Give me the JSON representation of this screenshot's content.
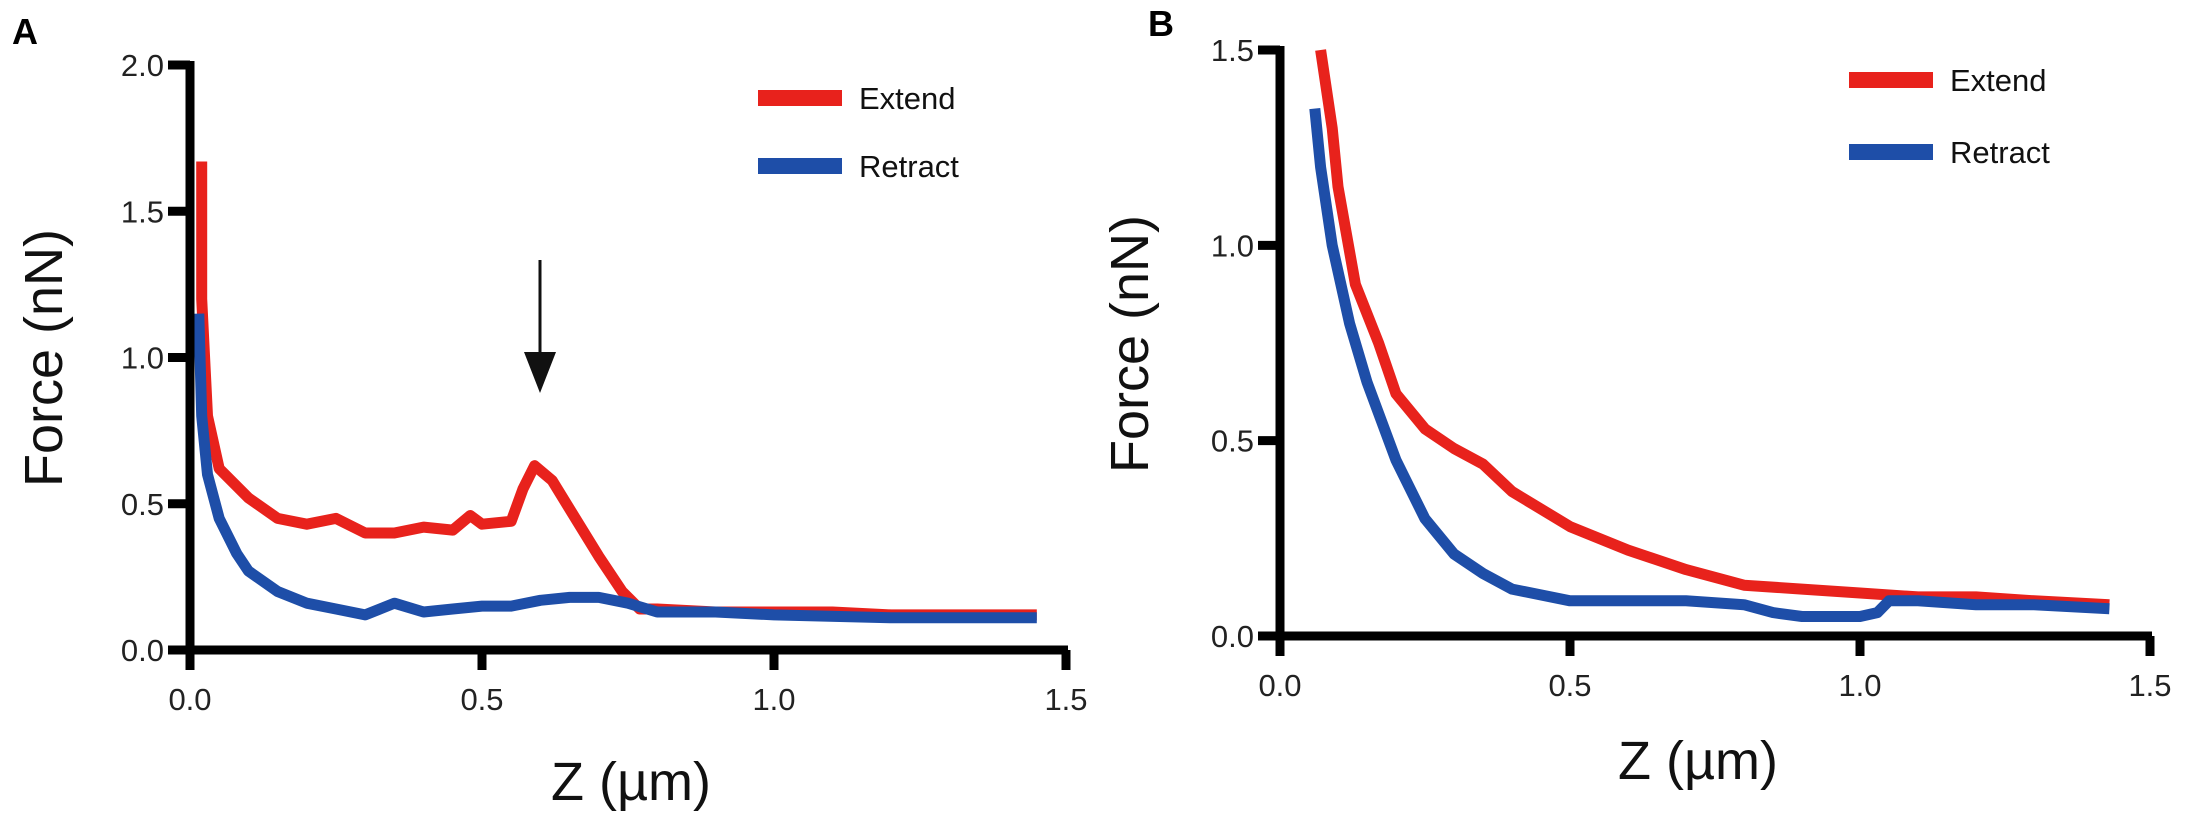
{
  "colors": {
    "extend": "#e8221c",
    "retract": "#1e4ea8",
    "axis": "#000000"
  },
  "chart_data": [
    {
      "panel_label": "A",
      "type": "line",
      "xlabel": "Z (µm)",
      "ylabel": "Force (nN)",
      "xlim": [
        0,
        1.5
      ],
      "ylim": [
        0,
        2.0
      ],
      "xticks": [
        "0.0",
        "0.5",
        "1.0",
        "1.5"
      ],
      "yticks": [
        "0.0",
        "0.5",
        "1.0",
        "1.5",
        "2.0"
      ],
      "grid": false,
      "legend_position": "top-right",
      "annotation": "arrow pointing down at the Extend peak near Z = 0.6 µm",
      "series": [
        {
          "name": "Extend",
          "color": "#e8221c",
          "x": [
            0.02,
            0.02,
            0.03,
            0.05,
            0.1,
            0.15,
            0.2,
            0.25,
            0.3,
            0.35,
            0.4,
            0.45,
            0.48,
            0.5,
            0.55,
            0.57,
            0.59,
            0.62,
            0.66,
            0.7,
            0.74,
            0.77,
            0.8,
            0.9,
            1.0,
            1.1,
            1.2,
            1.3,
            1.45
          ],
          "y": [
            1.67,
            1.2,
            0.8,
            0.62,
            0.52,
            0.45,
            0.43,
            0.45,
            0.4,
            0.4,
            0.42,
            0.41,
            0.46,
            0.43,
            0.44,
            0.55,
            0.63,
            0.58,
            0.45,
            0.32,
            0.2,
            0.14,
            0.14,
            0.13,
            0.13,
            0.13,
            0.12,
            0.12,
            0.12
          ]
        },
        {
          "name": "Retract",
          "color": "#1e4ea8",
          "x": [
            0.015,
            0.02,
            0.03,
            0.05,
            0.08,
            0.1,
            0.15,
            0.2,
            0.25,
            0.3,
            0.35,
            0.4,
            0.45,
            0.5,
            0.55,
            0.6,
            0.65,
            0.7,
            0.75,
            0.8,
            0.9,
            1.0,
            1.2,
            1.45
          ],
          "y": [
            1.15,
            0.8,
            0.6,
            0.45,
            0.33,
            0.27,
            0.2,
            0.16,
            0.14,
            0.12,
            0.16,
            0.13,
            0.14,
            0.15,
            0.15,
            0.17,
            0.18,
            0.18,
            0.16,
            0.13,
            0.13,
            0.12,
            0.11,
            0.11
          ]
        }
      ]
    },
    {
      "panel_label": "B",
      "type": "line",
      "xlabel": "Z (µm)",
      "ylabel": "Force (nN)",
      "xlim": [
        0,
        1.5
      ],
      "ylim": [
        0,
        1.5
      ],
      "xticks": [
        "0.0",
        "0.5",
        "1.0",
        "1.5"
      ],
      "yticks": [
        "0.0",
        "0.5",
        "1.0",
        "1.5"
      ],
      "grid": false,
      "legend_position": "top-right",
      "series": [
        {
          "name": "Extend",
          "color": "#e8221c",
          "x": [
            0.07,
            0.09,
            0.1,
            0.13,
            0.17,
            0.2,
            0.25,
            0.3,
            0.35,
            0.4,
            0.5,
            0.6,
            0.7,
            0.8,
            0.9,
            1.0,
            1.1,
            1.2,
            1.3,
            1.43
          ],
          "y": [
            1.5,
            1.3,
            1.15,
            0.9,
            0.75,
            0.62,
            0.53,
            0.48,
            0.44,
            0.37,
            0.28,
            0.22,
            0.17,
            0.13,
            0.12,
            0.11,
            0.1,
            0.1,
            0.09,
            0.08
          ]
        },
        {
          "name": "Retract",
          "color": "#1e4ea8",
          "x": [
            0.06,
            0.07,
            0.09,
            0.12,
            0.15,
            0.2,
            0.25,
            0.3,
            0.35,
            0.4,
            0.5,
            0.6,
            0.7,
            0.8,
            0.85,
            0.9,
            1.0,
            1.03,
            1.05,
            1.1,
            1.2,
            1.3,
            1.43
          ],
          "y": [
            1.35,
            1.2,
            1.0,
            0.8,
            0.65,
            0.45,
            0.3,
            0.21,
            0.16,
            0.12,
            0.09,
            0.09,
            0.09,
            0.08,
            0.06,
            0.05,
            0.05,
            0.06,
            0.09,
            0.09,
            0.08,
            0.08,
            0.07
          ]
        }
      ]
    }
  ]
}
